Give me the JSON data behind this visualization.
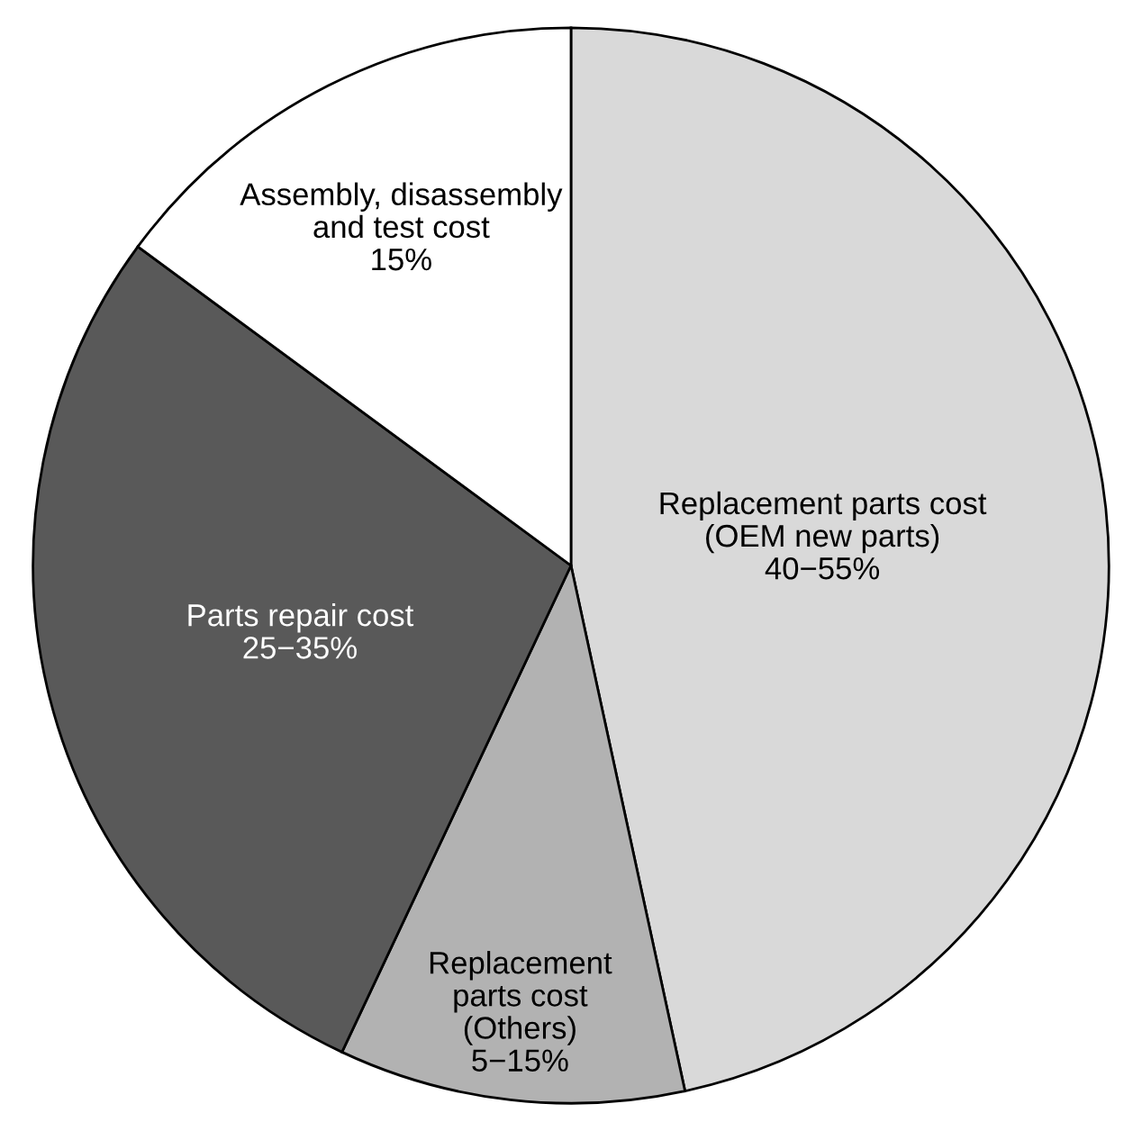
{
  "chart_data": {
    "type": "pie",
    "categories": [
      "Replacement parts cost\n(OEM new parts)\n40−55%",
      "Replacement\nparts cost\n(Others)\n5−15%",
      "Parts repair cost\n25−35%",
      "Assembly, disassembly\nand test cost\n15%"
    ],
    "values": [
      46.6,
      10.4,
      28.1,
      14.9
    ],
    "colors": [
      "#d9d9d9",
      "#b2b2b2",
      "#595959",
      "#ffffff"
    ]
  }
}
